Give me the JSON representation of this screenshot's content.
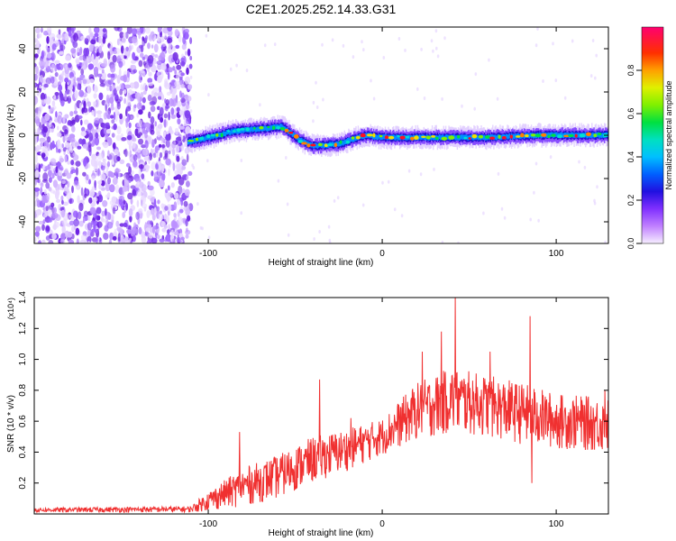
{
  "title": "C2E1.2025.252.14.33.G31",
  "chart_data": [
    {
      "type": "heatmap",
      "name": "spectrogram",
      "xlabel": "Height of straight line (km)",
      "ylabel": "Frequency (Hz)",
      "xlim": [
        -200,
        130
      ],
      "ylim": [
        -50,
        50
      ],
      "xticks": [
        -100,
        0,
        100
      ],
      "yticks": [
        -40,
        -20,
        0,
        20,
        40
      ],
      "colorbar": {
        "label": "Normalized spectral amplitude",
        "range": [
          0,
          1
        ],
        "ticks": [
          "0.0",
          "0.2",
          "0.4",
          "0.6",
          "0.8"
        ],
        "colors": [
          "#f0e6ff",
          "#9a50ff",
          "#3a10e0",
          "#0040ff",
          "#00b0ff",
          "#00e0d0",
          "#00e040",
          "#80f000",
          "#f0f000",
          "#ff8000",
          "#ff1020",
          "#ff0080"
        ]
      },
      "trace_center_hz": [
        {
          "x": -112,
          "y": -3
        },
        {
          "x": -100,
          "y": -1
        },
        {
          "x": -85,
          "y": 2
        },
        {
          "x": -70,
          "y": 3
        },
        {
          "x": -58,
          "y": 4
        },
        {
          "x": -48,
          "y": -2
        },
        {
          "x": -40,
          "y": -5
        },
        {
          "x": -25,
          "y": -4
        },
        {
          "x": -10,
          "y": 0
        },
        {
          "x": 0,
          "y": -1
        },
        {
          "x": 30,
          "y": -1
        },
        {
          "x": 60,
          "y": -1
        },
        {
          "x": 90,
          "y": 0
        },
        {
          "x": 130,
          "y": 0
        }
      ],
      "noise_region_x": [
        -200,
        -110
      ]
    },
    {
      "type": "line",
      "name": "snr",
      "xlabel": "Height of straight line (km)",
      "ylabel": "SNR (10 * v/v)",
      "multiplier": "(x10⁴)",
      "xlim": [
        -200,
        130
      ],
      "ylim": [
        0,
        1.4
      ],
      "xticks": [
        -100,
        0,
        100
      ],
      "yticks": [
        "0.2",
        "0.4",
        "0.6",
        "0.8",
        "1.0",
        "1.2",
        "1.4"
      ],
      "series_color": "#f03030",
      "envelope": [
        {
          "x": -200,
          "lo": 0.01,
          "hi": 0.04
        },
        {
          "x": -110,
          "lo": 0.01,
          "hi": 0.05
        },
        {
          "x": -100,
          "lo": 0.02,
          "hi": 0.15
        },
        {
          "x": -80,
          "lo": 0.05,
          "hi": 0.3
        },
        {
          "x": -60,
          "lo": 0.1,
          "hi": 0.38
        },
        {
          "x": -40,
          "lo": 0.2,
          "hi": 0.5
        },
        {
          "x": -20,
          "lo": 0.28,
          "hi": 0.55
        },
        {
          "x": 0,
          "lo": 0.38,
          "hi": 0.62
        },
        {
          "x": 20,
          "lo": 0.48,
          "hi": 0.85
        },
        {
          "x": 40,
          "lo": 0.52,
          "hi": 0.95
        },
        {
          "x": 60,
          "lo": 0.5,
          "hi": 0.9
        },
        {
          "x": 80,
          "lo": 0.45,
          "hi": 0.85
        },
        {
          "x": 100,
          "lo": 0.42,
          "hi": 0.78
        },
        {
          "x": 130,
          "lo": 0.4,
          "hi": 0.75
        }
      ],
      "spikes": [
        {
          "x": -82,
          "y": 0.53
        },
        {
          "x": -36,
          "y": 0.87
        },
        {
          "x": -18,
          "y": 0.62
        },
        {
          "x": 23,
          "y": 1.05
        },
        {
          "x": 34,
          "y": 1.18
        },
        {
          "x": 42,
          "y": 1.4
        },
        {
          "x": 62,
          "y": 1.05
        },
        {
          "x": 85,
          "y": 1.28
        },
        {
          "x": 86,
          "y": 0.2
        },
        {
          "x": 128,
          "y": 0.8
        }
      ]
    }
  ]
}
